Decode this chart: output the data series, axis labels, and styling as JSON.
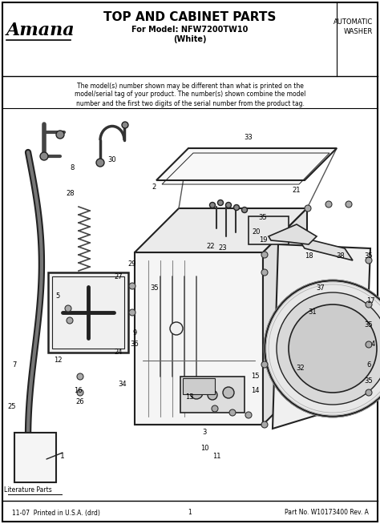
{
  "title": "TOP AND CABINET PARTS",
  "subtitle1": "For Model: NFW7200TW10",
  "subtitle2": "(White)",
  "brand": "Amana",
  "top_right_line1": "AUTOMATIC",
  "top_right_line2": "WASHER",
  "note": "The model(s) number shown may be different than what is printed on the\nmodel/serial tag of your product. The number(s) shown combine the model\nnumber and the first two digits of the serial number from the product tag.",
  "footer_left": "11-07  Printed in U.S.A. (drd)",
  "footer_center": "1",
  "footer_right": "Part No. W10173400 Rev. A",
  "literature_label": "Literature Parts",
  "bg_color": "#ffffff",
  "text_color": "#000000",
  "lc": "#222222",
  "fig_w": 4.74,
  "fig_h": 6.54,
  "dpi": 100
}
